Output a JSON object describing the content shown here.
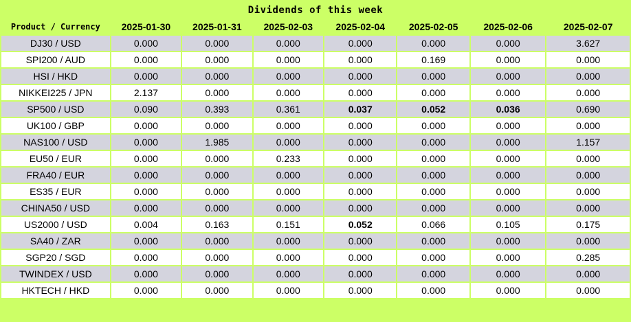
{
  "title": "Dividends of this week",
  "header": {
    "product_label": "Product / Currency",
    "dates": [
      "2025-01-30",
      "2025-01-31",
      "2025-02-03",
      "2025-02-04",
      "2025-02-05",
      "2025-02-06",
      "2025-02-07"
    ]
  },
  "rows": [
    {
      "product": "DJ30 / USD",
      "values": [
        "0.000",
        "0.000",
        "0.000",
        "0.000",
        "0.000",
        "0.000",
        "3.627"
      ]
    },
    {
      "product": "SPI200 / AUD",
      "values": [
        "0.000",
        "0.000",
        "0.000",
        "0.000",
        "0.169",
        "0.000",
        "0.000"
      ]
    },
    {
      "product": "HSI / HKD",
      "values": [
        "0.000",
        "0.000",
        "0.000",
        "0.000",
        "0.000",
        "0.000",
        "0.000"
      ]
    },
    {
      "product": "NIKKEI225 / JPN",
      "values": [
        "2.137",
        "0.000",
        "0.000",
        "0.000",
        "0.000",
        "0.000",
        "0.000"
      ]
    },
    {
      "product": "SP500 / USD",
      "values": [
        "0.090",
        "0.393",
        "0.361",
        "0.037",
        "0.052",
        "0.036",
        "0.690"
      ],
      "bold": [
        3,
        4,
        5
      ]
    },
    {
      "product": "UK100 / GBP",
      "values": [
        "0.000",
        "0.000",
        "0.000",
        "0.000",
        "0.000",
        "0.000",
        "0.000"
      ]
    },
    {
      "product": "NAS100 / USD",
      "values": [
        "0.000",
        "1.985",
        "0.000",
        "0.000",
        "0.000",
        "0.000",
        "1.157"
      ]
    },
    {
      "product": "EU50 / EUR",
      "values": [
        "0.000",
        "0.000",
        "0.233",
        "0.000",
        "0.000",
        "0.000",
        "0.000"
      ]
    },
    {
      "product": "FRA40 / EUR",
      "values": [
        "0.000",
        "0.000",
        "0.000",
        "0.000",
        "0.000",
        "0.000",
        "0.000"
      ]
    },
    {
      "product": "ES35 / EUR",
      "values": [
        "0.000",
        "0.000",
        "0.000",
        "0.000",
        "0.000",
        "0.000",
        "0.000"
      ]
    },
    {
      "product": "CHINA50 / USD",
      "values": [
        "0.000",
        "0.000",
        "0.000",
        "0.000",
        "0.000",
        "0.000",
        "0.000"
      ]
    },
    {
      "product": "US2000 / USD",
      "values": [
        "0.004",
        "0.163",
        "0.151",
        "0.052",
        "0.066",
        "0.105",
        "0.175"
      ],
      "bold": [
        3
      ]
    },
    {
      "product": "SA40 / ZAR",
      "values": [
        "0.000",
        "0.000",
        "0.000",
        "0.000",
        "0.000",
        "0.000",
        "0.000"
      ]
    },
    {
      "product": "SGP20 / SGD",
      "values": [
        "0.000",
        "0.000",
        "0.000",
        "0.000",
        "0.000",
        "0.000",
        "0.285"
      ]
    },
    {
      "product": "TWINDEX / USD",
      "values": [
        "0.000",
        "0.000",
        "0.000",
        "0.000",
        "0.000",
        "0.000",
        "0.000"
      ]
    },
    {
      "product": "HKTECH / HKD",
      "values": [
        "0.000",
        "0.000",
        "0.000",
        "0.000",
        "0.000",
        "0.000",
        "0.000"
      ]
    }
  ],
  "colors": {
    "header_bg": "#ccff66",
    "row_odd": "#d4d4de",
    "row_even": "#ffffff"
  }
}
